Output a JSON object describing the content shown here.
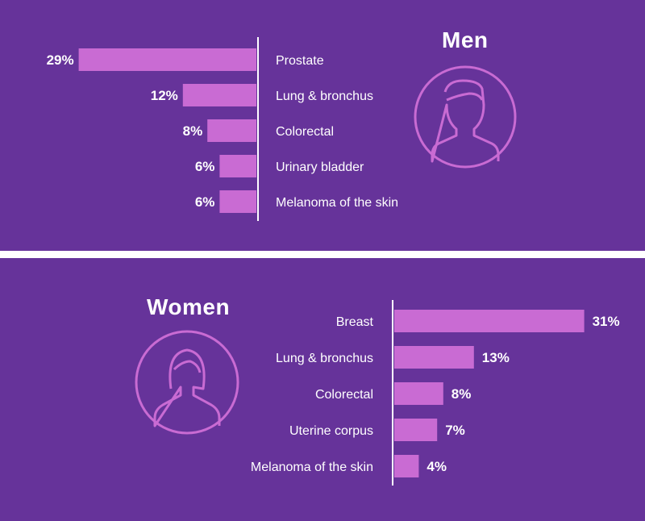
{
  "colors": {
    "background": "#66339a",
    "bar": "#c96bd3",
    "text": "#ffffff",
    "icon": "#c96bd3"
  },
  "icons": {
    "men": "man-avatar-icon",
    "women": "woman-avatar-icon"
  },
  "chart_data": [
    {
      "type": "bar",
      "orientation": "horizontal",
      "title": "Men",
      "categories": [
        "Prostate",
        "Lung & bronchus",
        "Colorectal",
        "Urinary bladder",
        "Melanoma of the skin"
      ],
      "values": [
        29,
        12,
        8,
        6,
        6
      ],
      "value_labels": [
        "29%",
        "12%",
        "8%",
        "6%",
        "6%"
      ],
      "unit": "%",
      "bar_direction": "right-to-left",
      "xlim": [
        0,
        31
      ]
    },
    {
      "type": "bar",
      "orientation": "horizontal",
      "title": "Women",
      "categories": [
        "Breast",
        "Lung & bronchus",
        "Colorectal",
        "Uterine corpus",
        "Melanoma of the skin"
      ],
      "values": [
        31,
        13,
        8,
        7,
        4
      ],
      "value_labels": [
        "31%",
        "13%",
        "8%",
        "7%",
        "4%"
      ],
      "unit": "%",
      "bar_direction": "left-to-right",
      "xlim": [
        0,
        31
      ]
    }
  ]
}
